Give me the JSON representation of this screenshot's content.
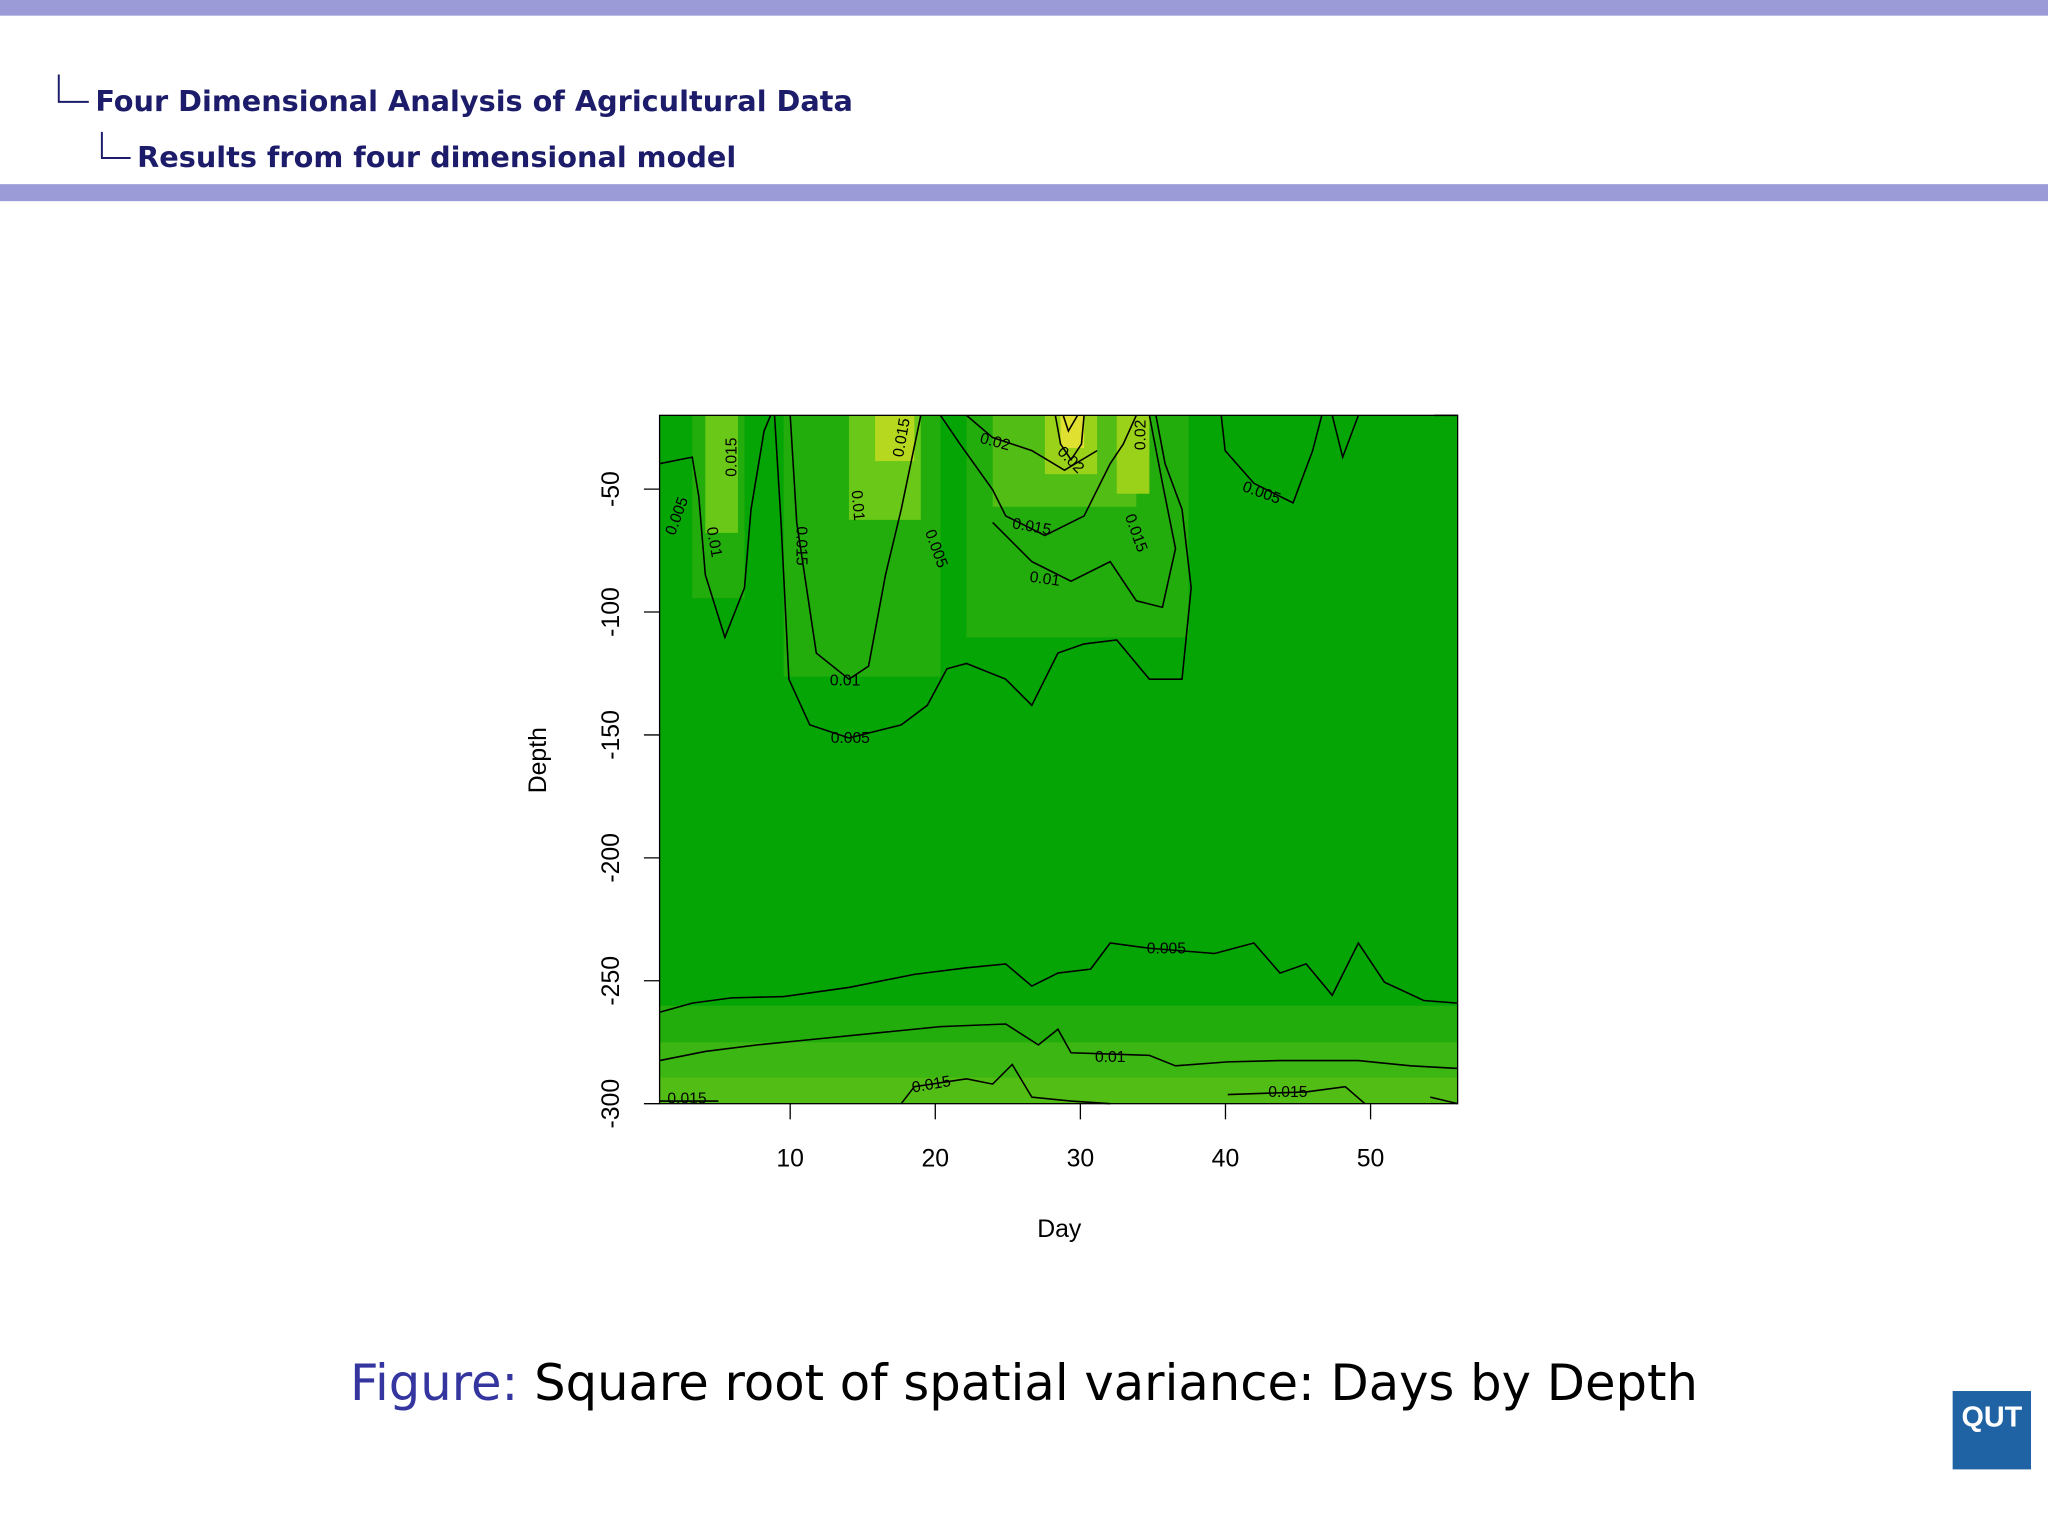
{
  "header": {
    "section": "Four Dimensional Analysis of Agricultural Data",
    "subsection": "Results from four dimensional model"
  },
  "chart_data": {
    "type": "contour",
    "x_label": "Day",
    "y_label": "Depth",
    "xlim": [
      1,
      56
    ],
    "xticks": [
      10,
      20,
      30,
      40,
      50
    ],
    "ylim": [
      -300,
      -20
    ],
    "yticks": [
      -50,
      -100,
      -150,
      -200,
      -250,
      -300
    ],
    "contour_labels": [
      0.005,
      0.01,
      0.015,
      0.01,
      0.015,
      0.015,
      0.005,
      0.02,
      0.02,
      0.015,
      0.01,
      0.015,
      0.02,
      0.005,
      0.01,
      0.005,
      0.005,
      0.01,
      0.015,
      0.015,
      0.015
    ]
  },
  "caption": {
    "label": "Figure:",
    "text": "Square root of spatial variance: Days by Depth"
  },
  "logo": "QUT"
}
